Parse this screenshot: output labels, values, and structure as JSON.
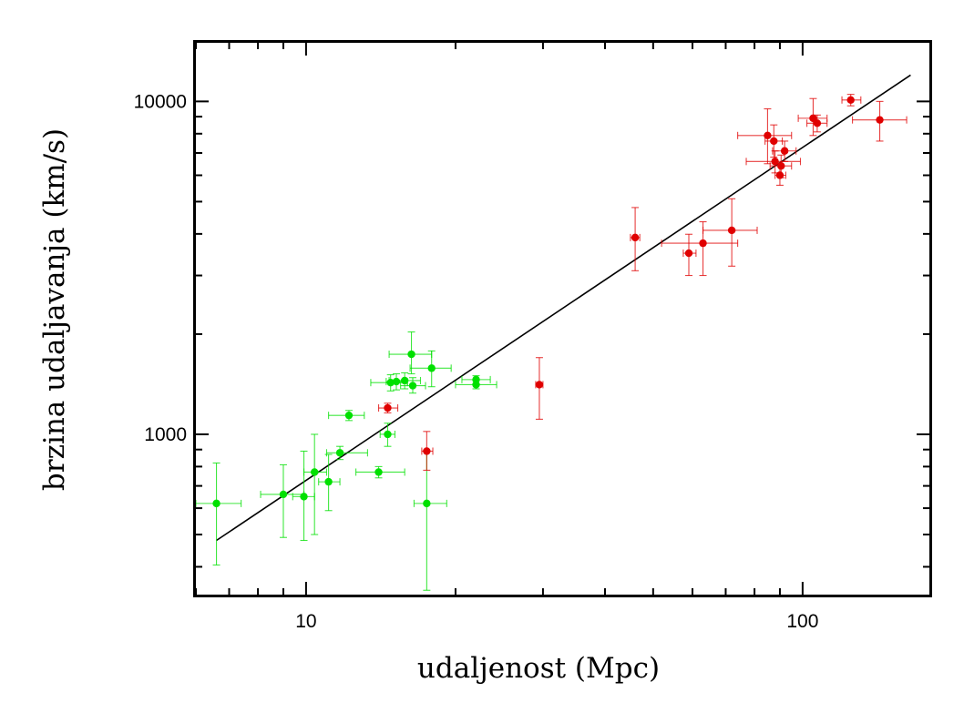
{
  "chart_data": {
    "type": "scatter",
    "title": "",
    "xlabel": "udaljenost (Mpc)",
    "ylabel": "brzina udaljavanja (km/s)",
    "xscale": "log",
    "yscale": "log",
    "xlim": [
      6,
      180
    ],
    "ylim": [
      330,
      15000
    ],
    "x_ticks": [
      {
        "value": 10,
        "label": "10"
      },
      {
        "value": 100,
        "label": "100"
      }
    ],
    "y_ticks": [
      {
        "value": 1000,
        "label": "1000"
      },
      {
        "value": 10000,
        "label": "10000"
      }
    ],
    "grid": false,
    "legend": "none",
    "series": [
      {
        "color": "#00e000",
        "points": [
          {
            "x": 6.6,
            "y": 620,
            "xerr": [
              6.0,
              7.4
            ],
            "yerr": [
              405,
              820
            ]
          },
          {
            "x": 9.0,
            "y": 660,
            "xerr": [
              8.1,
              9.9
            ],
            "yerr": [
              490,
              810
            ]
          },
          {
            "x": 9.9,
            "y": 650,
            "xerr": [
              9.4,
              10.4
            ],
            "yerr": [
              480,
              890
            ]
          },
          {
            "x": 10.4,
            "y": 770,
            "xerr": [
              9.9,
              11.0
            ],
            "yerr": [
              500,
              1000
            ]
          },
          {
            "x": 11.1,
            "y": 720,
            "xerr": [
              10.6,
              11.7
            ],
            "yerr": [
              590,
              870
            ]
          },
          {
            "x": 11.7,
            "y": 880,
            "xerr": [
              11.0,
              13.3
            ],
            "yerr": [
              840,
              920
            ]
          },
          {
            "x": 12.2,
            "y": 1140,
            "xerr": [
              11.1,
              13.1
            ],
            "yerr": [
              1100,
              1180
            ]
          },
          {
            "x": 14.0,
            "y": 770,
            "xerr": [
              12.6,
              15.8
            ],
            "yerr": [
              740,
              800
            ]
          },
          {
            "x": 14.6,
            "y": 1000,
            "xerr": [
              14.1,
              15.1
            ],
            "yerr": [
              920,
              1080
            ]
          },
          {
            "x": 14.8,
            "y": 1430,
            "xerr": [
              13.5,
              16.0
            ],
            "yerr": [
              1350,
              1510
            ]
          },
          {
            "x": 15.2,
            "y": 1440,
            "xerr": [
              14.5,
              16.0
            ],
            "yerr": [
              1360,
              1520
            ]
          },
          {
            "x": 15.8,
            "y": 1450,
            "xerr": [
              14.7,
              17.0
            ],
            "yerr": [
              1370,
              1530
            ]
          },
          {
            "x": 16.3,
            "y": 1740,
            "xerr": [
              14.7,
              17.9
            ],
            "yerr": [
              1520,
              2030
            ]
          },
          {
            "x": 16.4,
            "y": 1400,
            "xerr": [
              15.5,
              17.4
            ],
            "yerr": [
              1330,
              1480
            ]
          },
          {
            "x": 17.5,
            "y": 620,
            "xerr": [
              16.5,
              19.2
            ],
            "yerr": [
              340,
              890
            ]
          },
          {
            "x": 17.9,
            "y": 1580,
            "xerr": [
              16.2,
              19.6
            ],
            "yerr": [
              1390,
              1780
            ]
          },
          {
            "x": 22.0,
            "y": 1410,
            "xerr": [
              20.0,
              24.2
            ],
            "yerr": [
              1370,
              1450
            ]
          },
          {
            "x": 22.0,
            "y": 1460,
            "xerr": [
              20.6,
              23.5
            ],
            "yerr": [
              1420,
              1500
            ]
          }
        ]
      },
      {
        "color": "#e00000",
        "points": [
          {
            "x": 14.6,
            "y": 1200,
            "xerr": [
              14.0,
              15.3
            ],
            "yerr": [
              1160,
              1240
            ]
          },
          {
            "x": 17.5,
            "y": 890,
            "xerr": [
              17.1,
              18.0
            ],
            "yerr": [
              780,
              1020
            ]
          },
          {
            "x": 29.5,
            "y": 1410,
            "xerr": [
              29.0,
              30.0
            ],
            "yerr": [
              1110,
              1700
            ]
          },
          {
            "x": 46.0,
            "y": 3900,
            "xerr": [
              45.0,
              47.0
            ],
            "yerr": [
              3100,
              4800
            ]
          },
          {
            "x": 59.0,
            "y": 3500,
            "xerr": [
              57.5,
              61.0
            ],
            "yerr": [
              3000,
              3990
            ]
          },
          {
            "x": 63.0,
            "y": 3750,
            "xerr": [
              52.0,
              74.0
            ],
            "yerr": [
              3000,
              4350
            ]
          },
          {
            "x": 72.0,
            "y": 4100,
            "xerr": [
              63.0,
              81.0
            ],
            "yerr": [
              3200,
              5100
            ]
          },
          {
            "x": 85.0,
            "y": 7900,
            "xerr": [
              74.0,
              95.0
            ],
            "yerr": [
              6500,
              9500
            ]
          },
          {
            "x": 87.5,
            "y": 7600,
            "xerr": [
              84.0,
              91.0
            ],
            "yerr": [
              6800,
              8500
            ]
          },
          {
            "x": 88.0,
            "y": 6600,
            "xerr": [
              77.0,
              99.0
            ],
            "yerr": [
              6100,
              7100
            ]
          },
          {
            "x": 90.0,
            "y": 6000,
            "xerr": [
              88.0,
              92.5
            ],
            "yerr": [
              5600,
              6500
            ]
          },
          {
            "x": 90.5,
            "y": 6400,
            "xerr": [
              86.0,
              95.0
            ],
            "yerr": [
              5900,
              6900
            ]
          },
          {
            "x": 92.0,
            "y": 7100,
            "xerr": [
              87.0,
              97.0
            ],
            "yerr": [
              6600,
              7600
            ]
          },
          {
            "x": 105.0,
            "y": 8900,
            "xerr": [
              98.0,
              112.0
            ],
            "yerr": [
              7900,
              10200
            ]
          },
          {
            "x": 107.0,
            "y": 8600,
            "xerr": [
              102.0,
              112.0
            ],
            "yerr": [
              8100,
              9100
            ]
          },
          {
            "x": 125.0,
            "y": 10100,
            "xerr": [
              120.0,
              131.0
            ],
            "yerr": [
              9700,
              10500
            ]
          },
          {
            "x": 143.0,
            "y": 8800,
            "xerr": [
              126.0,
              162.0
            ],
            "yerr": [
              7600,
              10000
            ]
          }
        ]
      }
    ],
    "fit_line": {
      "color": "#000000",
      "x": [
        6.6,
        165
      ],
      "y": [
        480,
        12000
      ]
    }
  }
}
